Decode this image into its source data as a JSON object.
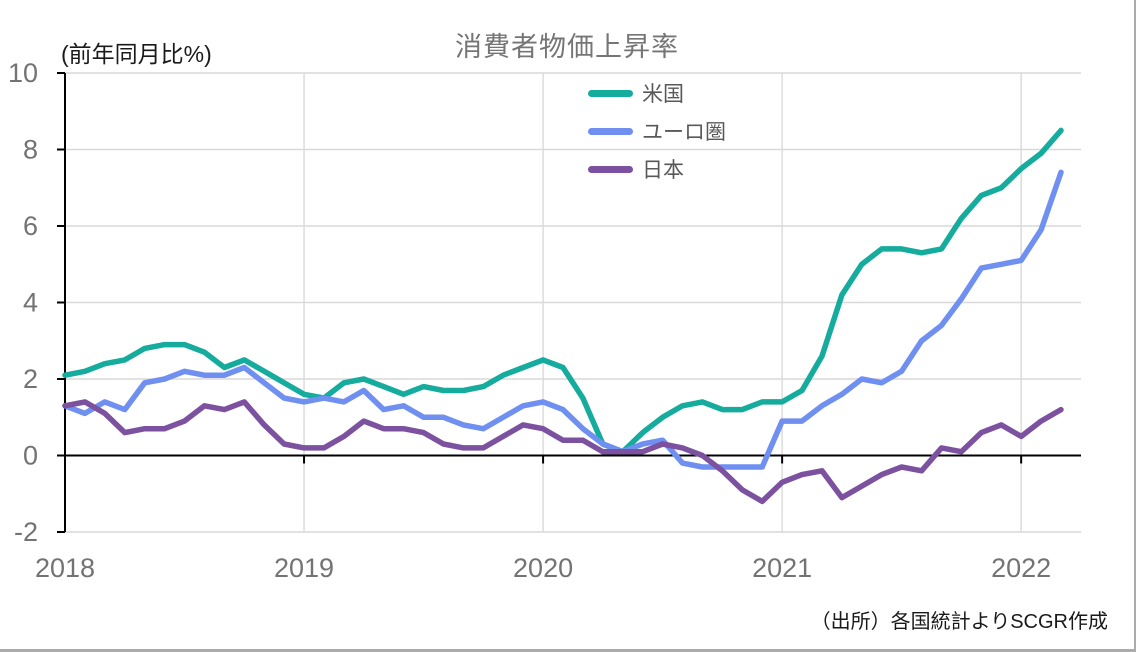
{
  "title": "消費者物価上昇率",
  "axis_unit_label": "(前年同月比%)",
  "source": "（出所）各国統計よりSCGR作成",
  "colors": {
    "us_line": "#15AB9D",
    "euro_line": "#6F8FF1",
    "japan_line": "#7C52A0",
    "gridline": "#D9D9D9",
    "axis_line": "#000000",
    "tick_text": "#737373",
    "title_text": "#757575",
    "legend_text": "#595959"
  },
  "chart_data": {
    "type": "line",
    "title": "消費者物価上昇率",
    "ylabel": "(前年同月比%)",
    "x_start": "2018-01",
    "x_end": "2022-03",
    "x_frequency": "monthly",
    "x_tick_labels": [
      "2018",
      "2019",
      "2020",
      "2021",
      "2022"
    ],
    "y_ticks": [
      -2,
      0,
      2,
      4,
      6,
      8,
      10
    ],
    "ylim": [
      -2,
      10
    ],
    "grid": true,
    "legend_position": "top-center-vertical",
    "series": [
      {
        "name": "米国",
        "color": "#15AB9D",
        "values": [
          2.1,
          2.2,
          2.4,
          2.5,
          2.8,
          2.9,
          2.9,
          2.7,
          2.3,
          2.5,
          2.2,
          1.9,
          1.6,
          1.5,
          1.9,
          2.0,
          1.8,
          1.6,
          1.8,
          1.7,
          1.7,
          1.8,
          2.1,
          2.3,
          2.5,
          2.3,
          1.5,
          0.3,
          0.1,
          0.6,
          1.0,
          1.3,
          1.4,
          1.2,
          1.2,
          1.4,
          1.4,
          1.7,
          2.6,
          4.2,
          5.0,
          5.4,
          5.4,
          5.3,
          5.4,
          6.2,
          6.8,
          7.0,
          7.5,
          7.9,
          8.5
        ]
      },
      {
        "name": "ユーロ圏",
        "color": "#6F8FF1",
        "values": [
          1.3,
          1.1,
          1.4,
          1.2,
          1.9,
          2.0,
          2.2,
          2.1,
          2.1,
          2.3,
          1.9,
          1.5,
          1.4,
          1.5,
          1.4,
          1.7,
          1.2,
          1.3,
          1.0,
          1.0,
          0.8,
          0.7,
          1.0,
          1.3,
          1.4,
          1.2,
          0.7,
          0.3,
          0.1,
          0.3,
          0.4,
          -0.2,
          -0.3,
          -0.3,
          -0.3,
          -0.3,
          0.9,
          0.9,
          1.3,
          1.6,
          2.0,
          1.9,
          2.2,
          3.0,
          3.4,
          4.1,
          4.9,
          5.0,
          5.1,
          5.9,
          7.4
        ]
      },
      {
        "name": "日本",
        "color": "#7C52A0",
        "values": [
          1.3,
          1.4,
          1.1,
          0.6,
          0.7,
          0.7,
          0.9,
          1.3,
          1.2,
          1.4,
          0.8,
          0.3,
          0.2,
          0.2,
          0.5,
          0.9,
          0.7,
          0.7,
          0.6,
          0.3,
          0.2,
          0.2,
          0.5,
          0.8,
          0.7,
          0.4,
          0.4,
          0.1,
          0.1,
          0.1,
          0.3,
          0.2,
          0.0,
          -0.4,
          -0.9,
          -1.2,
          -0.7,
          -0.5,
          -0.4,
          -1.1,
          -0.8,
          -0.5,
          -0.3,
          -0.4,
          0.2,
          0.1,
          0.6,
          0.8,
          0.5,
          0.9,
          1.2
        ]
      }
    ]
  }
}
